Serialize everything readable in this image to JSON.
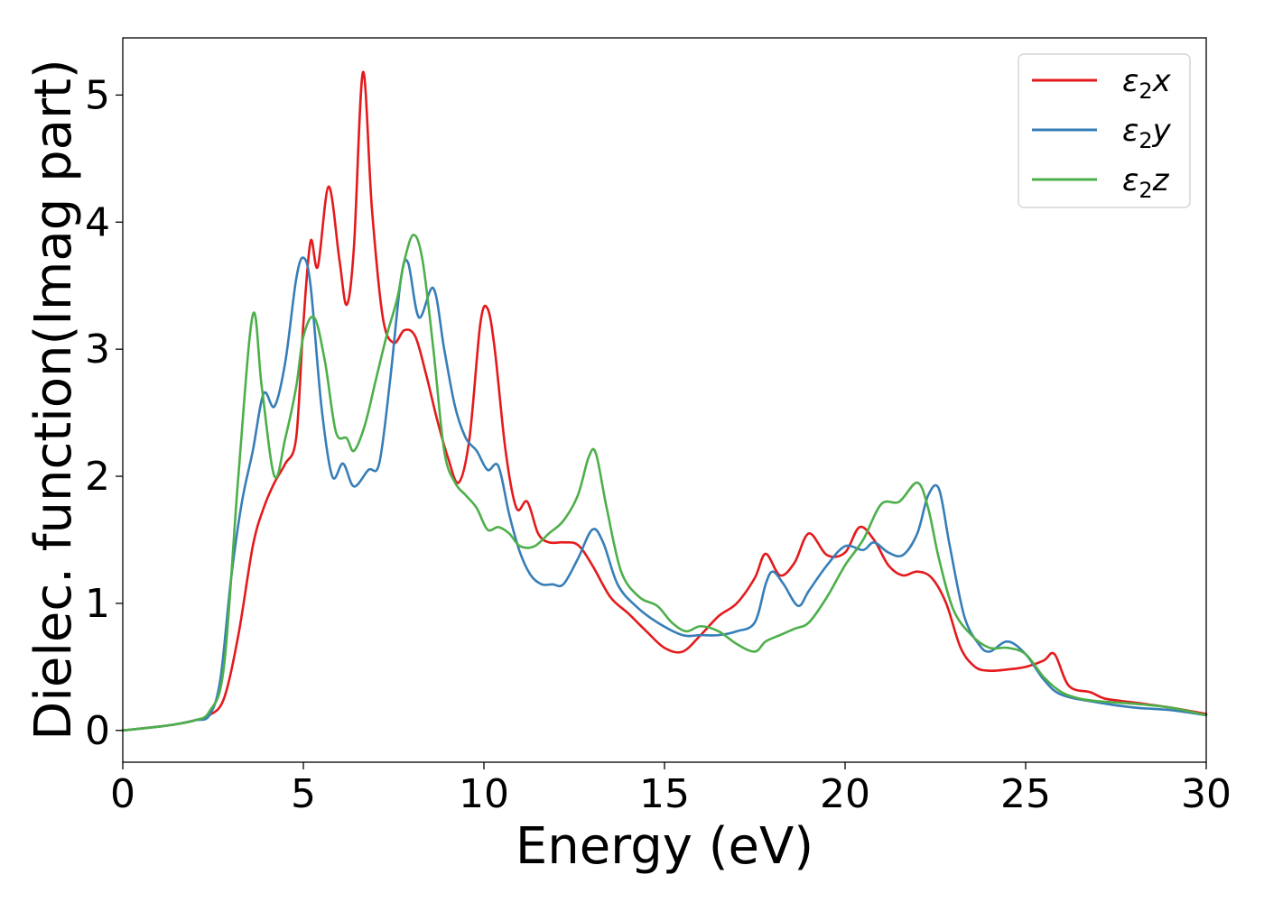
{
  "chart_data": {
    "type": "line",
    "title": "",
    "xlabel": "Energy (eV)",
    "ylabel": "Dielec. function(Imag part)",
    "xlim": [
      0,
      30
    ],
    "ylim": [
      -0.25,
      5.45
    ],
    "xticks": [
      0,
      5,
      10,
      15,
      20,
      25,
      30
    ],
    "xtick_labels": [
      "0",
      "5",
      "10",
      "15",
      "20",
      "25",
      "30"
    ],
    "yticks": [
      0,
      1,
      2,
      3,
      4,
      5
    ],
    "ytick_labels": [
      "0",
      "1",
      "2",
      "3",
      "4",
      "5"
    ],
    "grid": false,
    "legend_position": "top-right",
    "series": [
      {
        "name": "ε₂x",
        "legend": {
          "base": "ε",
          "sub": "2",
          "suffix": "x"
        },
        "color": "#e41a1c",
        "x": [
          0,
          1,
          1.5,
          2,
          2.4,
          2.8,
          3.2,
          3.6,
          3.9,
          4.2,
          4.5,
          4.8,
          5.0,
          5.2,
          5.4,
          5.7,
          6.0,
          6.2,
          6.4,
          6.65,
          6.9,
          7.2,
          7.5,
          7.8,
          8.1,
          8.4,
          8.7,
          9.0,
          9.3,
          9.6,
          9.9,
          10.1,
          10.3,
          10.6,
          10.9,
          11.2,
          11.5,
          11.8,
          12.2,
          12.6,
          13.0,
          13.5,
          14.0,
          14.5,
          15.0,
          15.5,
          16.0,
          16.5,
          17.0,
          17.5,
          17.8,
          18.2,
          18.6,
          19.0,
          19.5,
          20.0,
          20.4,
          20.8,
          21.2,
          21.6,
          22.0,
          22.4,
          22.8,
          23.2,
          23.6,
          24.0,
          24.5,
          25.0,
          25.5,
          25.8,
          26.2,
          26.8,
          27.2,
          28.0,
          29.0,
          30.0
        ],
        "y": [
          0,
          0.03,
          0.05,
          0.08,
          0.12,
          0.25,
          0.75,
          1.45,
          1.75,
          1.95,
          2.1,
          2.3,
          3.2,
          3.85,
          3.65,
          4.28,
          3.7,
          3.35,
          3.8,
          5.18,
          4.1,
          3.25,
          3.05,
          3.15,
          3.1,
          2.8,
          2.45,
          2.15,
          1.95,
          2.3,
          3.2,
          3.32,
          3.0,
          2.2,
          1.75,
          1.8,
          1.55,
          1.48,
          1.48,
          1.46,
          1.3,
          1.05,
          0.92,
          0.78,
          0.65,
          0.62,
          0.75,
          0.9,
          1.0,
          1.2,
          1.39,
          1.22,
          1.32,
          1.55,
          1.38,
          1.4,
          1.6,
          1.5,
          1.3,
          1.22,
          1.25,
          1.2,
          1.0,
          0.65,
          0.5,
          0.47,
          0.48,
          0.5,
          0.55,
          0.6,
          0.35,
          0.3,
          0.25,
          0.22,
          0.18,
          0.13
        ]
      },
      {
        "name": "ε₂y",
        "legend": {
          "base": "ε",
          "sub": "2",
          "suffix": "y"
        },
        "color": "#377eb8",
        "x": [
          0,
          1,
          1.5,
          2,
          2.4,
          2.7,
          3.0,
          3.3,
          3.6,
          3.9,
          4.2,
          4.5,
          4.8,
          5.0,
          5.2,
          5.5,
          5.8,
          6.1,
          6.4,
          6.8,
          7.1,
          7.4,
          7.7,
          7.9,
          8.2,
          8.6,
          8.9,
          9.2,
          9.5,
          9.8,
          10.1,
          10.4,
          10.7,
          11.0,
          11.3,
          11.6,
          11.9,
          12.2,
          12.6,
          13.0,
          13.3,
          13.7,
          14.2,
          14.8,
          15.5,
          16.0,
          16.5,
          17.0,
          17.5,
          17.8,
          18.0,
          18.3,
          18.7,
          19.0,
          19.5,
          20.0,
          20.5,
          20.8,
          21.2,
          21.6,
          22.0,
          22.3,
          22.6,
          22.9,
          23.3,
          23.7,
          24.0,
          24.5,
          25.0,
          25.5,
          26.0,
          27.0,
          28.0,
          29.0,
          30.0
        ],
        "y": [
          0,
          0.03,
          0.05,
          0.08,
          0.12,
          0.4,
          1.2,
          1.8,
          2.2,
          2.65,
          2.55,
          2.9,
          3.55,
          3.72,
          3.5,
          2.55,
          2.0,
          2.1,
          1.92,
          2.05,
          2.1,
          2.75,
          3.55,
          3.68,
          3.25,
          3.48,
          3.0,
          2.55,
          2.3,
          2.2,
          2.05,
          2.08,
          1.7,
          1.4,
          1.22,
          1.15,
          1.15,
          1.15,
          1.35,
          1.58,
          1.48,
          1.15,
          0.98,
          0.85,
          0.75,
          0.75,
          0.75,
          0.78,
          0.85,
          1.15,
          1.25,
          1.15,
          0.98,
          1.1,
          1.3,
          1.45,
          1.42,
          1.48,
          1.4,
          1.38,
          1.55,
          1.85,
          1.9,
          1.45,
          0.9,
          0.68,
          0.62,
          0.7,
          0.6,
          0.4,
          0.28,
          0.22,
          0.18,
          0.16,
          0.12
        ]
      },
      {
        "name": "ε₂z",
        "legend": {
          "base": "ε",
          "sub": "2",
          "suffix": "z"
        },
        "color": "#4daf4a",
        "x": [
          0,
          1,
          1.5,
          2,
          2.4,
          2.8,
          3.2,
          3.6,
          3.85,
          4.2,
          4.5,
          4.8,
          5.0,
          5.3,
          5.6,
          5.9,
          6.2,
          6.4,
          6.7,
          7.0,
          7.3,
          7.6,
          7.8,
          8.05,
          8.3,
          8.6,
          8.9,
          9.2,
          9.5,
          9.8,
          10.1,
          10.4,
          10.7,
          11.0,
          11.4,
          11.8,
          12.2,
          12.6,
          12.9,
          13.1,
          13.4,
          13.8,
          14.3,
          14.8,
          15.2,
          15.6,
          16.0,
          16.5,
          17.0,
          17.5,
          17.8,
          18.2,
          18.6,
          19.0,
          19.5,
          20.0,
          20.5,
          21.0,
          21.5,
          22.0,
          22.3,
          22.6,
          23.0,
          23.5,
          24.0,
          24.5,
          25.0,
          25.5,
          26.0,
          26.5,
          27.0,
          28.0,
          29.0,
          30.0
        ],
        "y": [
          0,
          0.03,
          0.05,
          0.08,
          0.15,
          0.5,
          2.0,
          3.27,
          2.7,
          2.0,
          2.3,
          2.7,
          3.1,
          3.25,
          2.9,
          2.35,
          2.3,
          2.2,
          2.4,
          2.75,
          3.1,
          3.4,
          3.7,
          3.9,
          3.7,
          3.0,
          2.2,
          1.95,
          1.85,
          1.75,
          1.58,
          1.6,
          1.55,
          1.45,
          1.45,
          1.55,
          1.65,
          1.85,
          2.15,
          2.18,
          1.75,
          1.25,
          1.05,
          0.98,
          0.85,
          0.78,
          0.82,
          0.78,
          0.68,
          0.62,
          0.7,
          0.75,
          0.8,
          0.85,
          1.05,
          1.3,
          1.5,
          1.78,
          1.8,
          1.95,
          1.75,
          1.35,
          0.95,
          0.75,
          0.65,
          0.65,
          0.6,
          0.42,
          0.3,
          0.25,
          0.23,
          0.21,
          0.18,
          0.12
        ]
      }
    ]
  }
}
